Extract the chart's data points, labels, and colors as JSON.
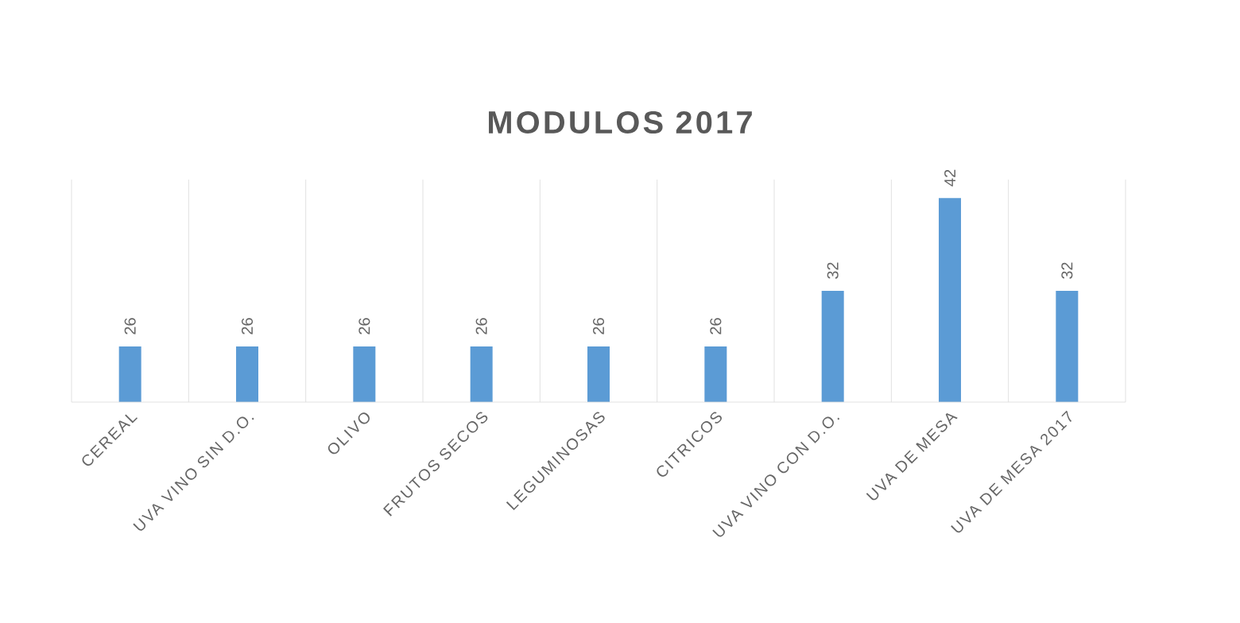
{
  "chart_data": {
    "type": "bar",
    "title": "MODULOS 2017",
    "categories": [
      "CEREAL",
      "UVA VINO SIN D.O.",
      "OLIVO",
      "FRUTOS SECOS",
      "LEGUMINOSAS",
      "CITRICOS",
      "UVA VINO CON D.O.",
      "UVA DE MESA",
      "UVA DE MESA 2017"
    ],
    "values": [
      26,
      26,
      26,
      26,
      26,
      26,
      32,
      42,
      32
    ],
    "color": "#5b9bd5",
    "ylim": [
      20,
      44
    ],
    "grid": "x",
    "data_labels": true,
    "tick_labels": "x"
  }
}
